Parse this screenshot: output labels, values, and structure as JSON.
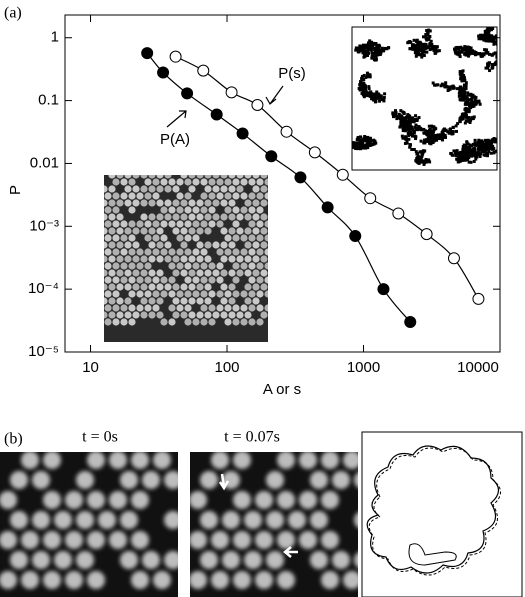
{
  "chart_data": {
    "type": "scatter",
    "xlabel": "A or s",
    "ylabel": "P",
    "xscale": "log",
    "yscale": "log",
    "xlim": [
      6.5,
      10000
    ],
    "ylim": [
      1e-05,
      2.3
    ],
    "xticks": [
      10,
      100,
      1000,
      10000
    ],
    "yticks": [
      1,
      0.1,
      0.01,
      {
        "value": 0.001,
        "label": "10⁻³"
      },
      {
        "value": 0.0001,
        "label": "10⁻⁴"
      },
      {
        "value": 1e-05,
        "label": "10⁻⁵"
      }
    ],
    "series": [
      {
        "name": "P(A)",
        "color": "#000000",
        "marker": "filled",
        "x": [
          26,
          34,
          51,
          84,
          130,
          211,
          345,
          546,
          870,
          1400,
          2200
        ],
        "values": [
          0.57,
          0.28,
          0.13,
          0.06,
          0.03,
          0.013,
          0.006,
          0.002,
          0.0007,
          0.0001,
          3e-05
        ]
      },
      {
        "name": "P(s)",
        "color": "#000000",
        "marker": "open",
        "x": [
          42,
          67,
          108,
          167,
          273,
          440,
          705,
          1120,
          1800,
          2900,
          4600,
          6950
        ],
        "values": [
          0.5,
          0.3,
          0.135,
          0.085,
          0.032,
          0.015,
          0.0066,
          0.0028,
          0.0016,
          0.00075,
          0.00031,
          7e-05
        ]
      }
    ]
  },
  "panels": {
    "a": "(a)",
    "b": "(b)"
  },
  "frames": [
    "t = 0s",
    "t = 0.07s"
  ]
}
